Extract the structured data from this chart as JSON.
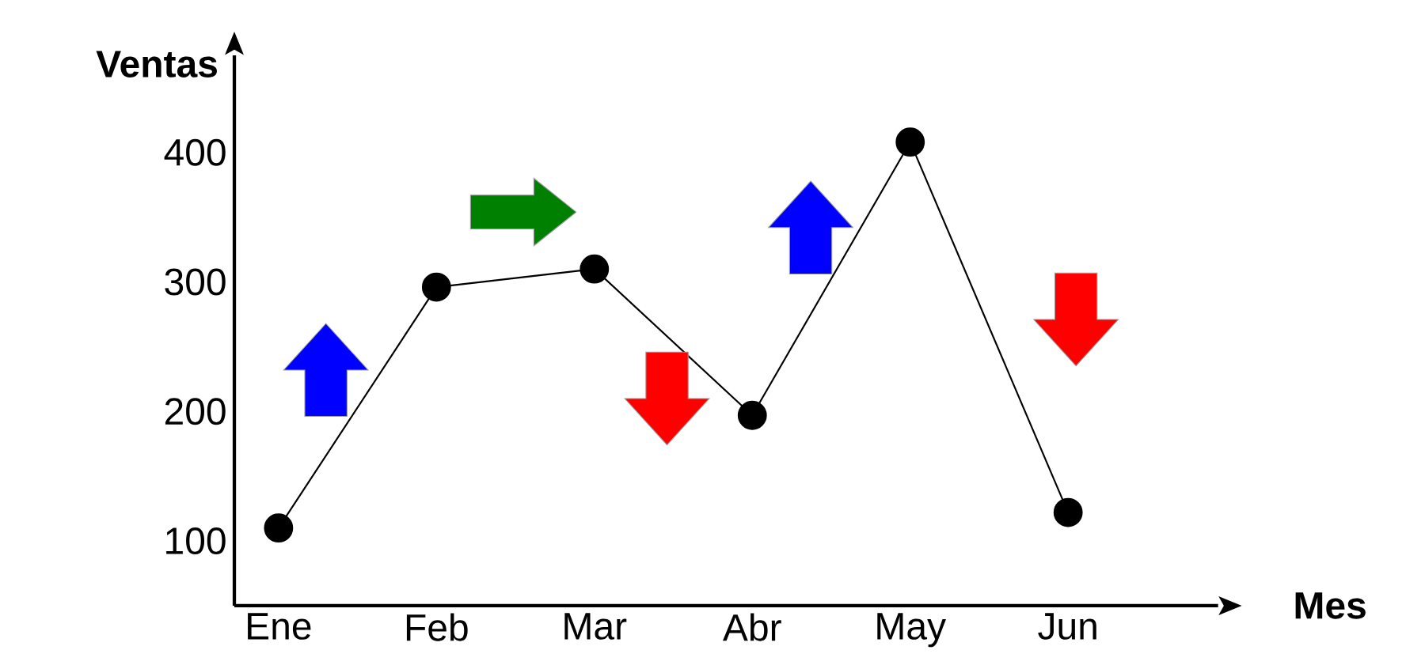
{
  "chart_data": {
    "type": "line",
    "xlabel": "Mes",
    "ylabel": "Ventas",
    "categories": [
      "Ene",
      "Feb",
      "Mar",
      "Abr",
      "May",
      "Jun"
    ],
    "series": [
      {
        "color": "#000000",
        "values": [
          110,
          296,
          310,
          197,
          408,
          122
        ]
      }
    ],
    "ylim": [
      50,
      475
    ],
    "yticks": [
      100,
      200,
      300,
      400
    ],
    "marker": "circle",
    "line_style": "solid"
  }
}
